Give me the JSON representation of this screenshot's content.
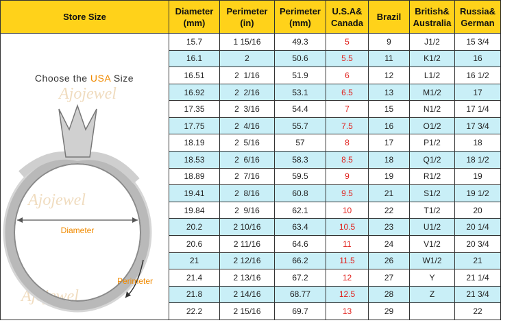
{
  "header": {
    "title": "Store Size",
    "columns": [
      [
        "Diameter",
        "(mm)"
      ],
      [
        "Perimeter",
        "(in)"
      ],
      [
        "Perimeter",
        "(mm)"
      ],
      [
        "U.S.A&",
        "Canada"
      ],
      [
        "Brazil"
      ],
      [
        "British&",
        "Australia"
      ],
      [
        "Russia&",
        "German"
      ]
    ]
  },
  "panel": {
    "heading": [
      "Choose the ",
      "USA",
      " Size"
    ],
    "diameter_label": "Diameter",
    "perimeter_label": "Perimeter",
    "watermark": "Ajojewel"
  },
  "table": {
    "rows": [
      [
        "15.7",
        "1 15/16",
        "49.3",
        "5",
        "9",
        "J1/2",
        "15 3/4"
      ],
      [
        "16.1",
        "2",
        "50.6",
        "5.5",
        "11",
        "K1/2",
        "16"
      ],
      [
        "16.51",
        "2  1/16",
        "51.9",
        "6",
        "12",
        "L1/2",
        "16 1/2"
      ],
      [
        "16.92",
        "2  2/16",
        "53.1",
        "6.5",
        "13",
        "M1/2",
        "17"
      ],
      [
        "17.35",
        "2  3/16",
        "54.4",
        "7",
        "15",
        "N1/2",
        "17 1/4"
      ],
      [
        "17.75",
        "2  4/16",
        "55.7",
        "7.5",
        "16",
        "O1/2",
        "17 3/4"
      ],
      [
        "18.19",
        "2  5/16",
        "57",
        "8",
        "17",
        "P1/2",
        "18"
      ],
      [
        "18.53",
        "2  6/16",
        "58.3",
        "8.5",
        "18",
        "Q1/2",
        "18 1/2"
      ],
      [
        "18.89",
        "2  7/16",
        "59.5",
        "9",
        "19",
        "R1/2",
        "19"
      ],
      [
        "19.41",
        "2  8/16",
        "60.8",
        "9.5",
        "21",
        "S1/2",
        "19 1/2"
      ],
      [
        "19.84",
        "2  9/16",
        "62.1",
        "10",
        "22",
        "T1/2",
        "20"
      ],
      [
        "20.2",
        "2 10/16",
        "63.4",
        "10.5",
        "23",
        "U1/2",
        "20 1/4"
      ],
      [
        "20.6",
        "2 11/16",
        "64.6",
        "11",
        "24",
        "V1/2",
        "20 3/4"
      ],
      [
        "21",
        "2 12/16",
        "66.2",
        "11.5",
        "26",
        "W1/2",
        "21"
      ],
      [
        "21.4",
        "2 13/16",
        "67.2",
        "12",
        "27",
        "Y",
        "21 1/4"
      ],
      [
        "21.8",
        "2 14/16",
        "68.77",
        "12.5",
        "28",
        "Z",
        "21 3/4"
      ],
      [
        "22.2",
        "2 15/16",
        "69.7",
        "13",
        "29",
        "",
        "22"
      ]
    ]
  }
}
